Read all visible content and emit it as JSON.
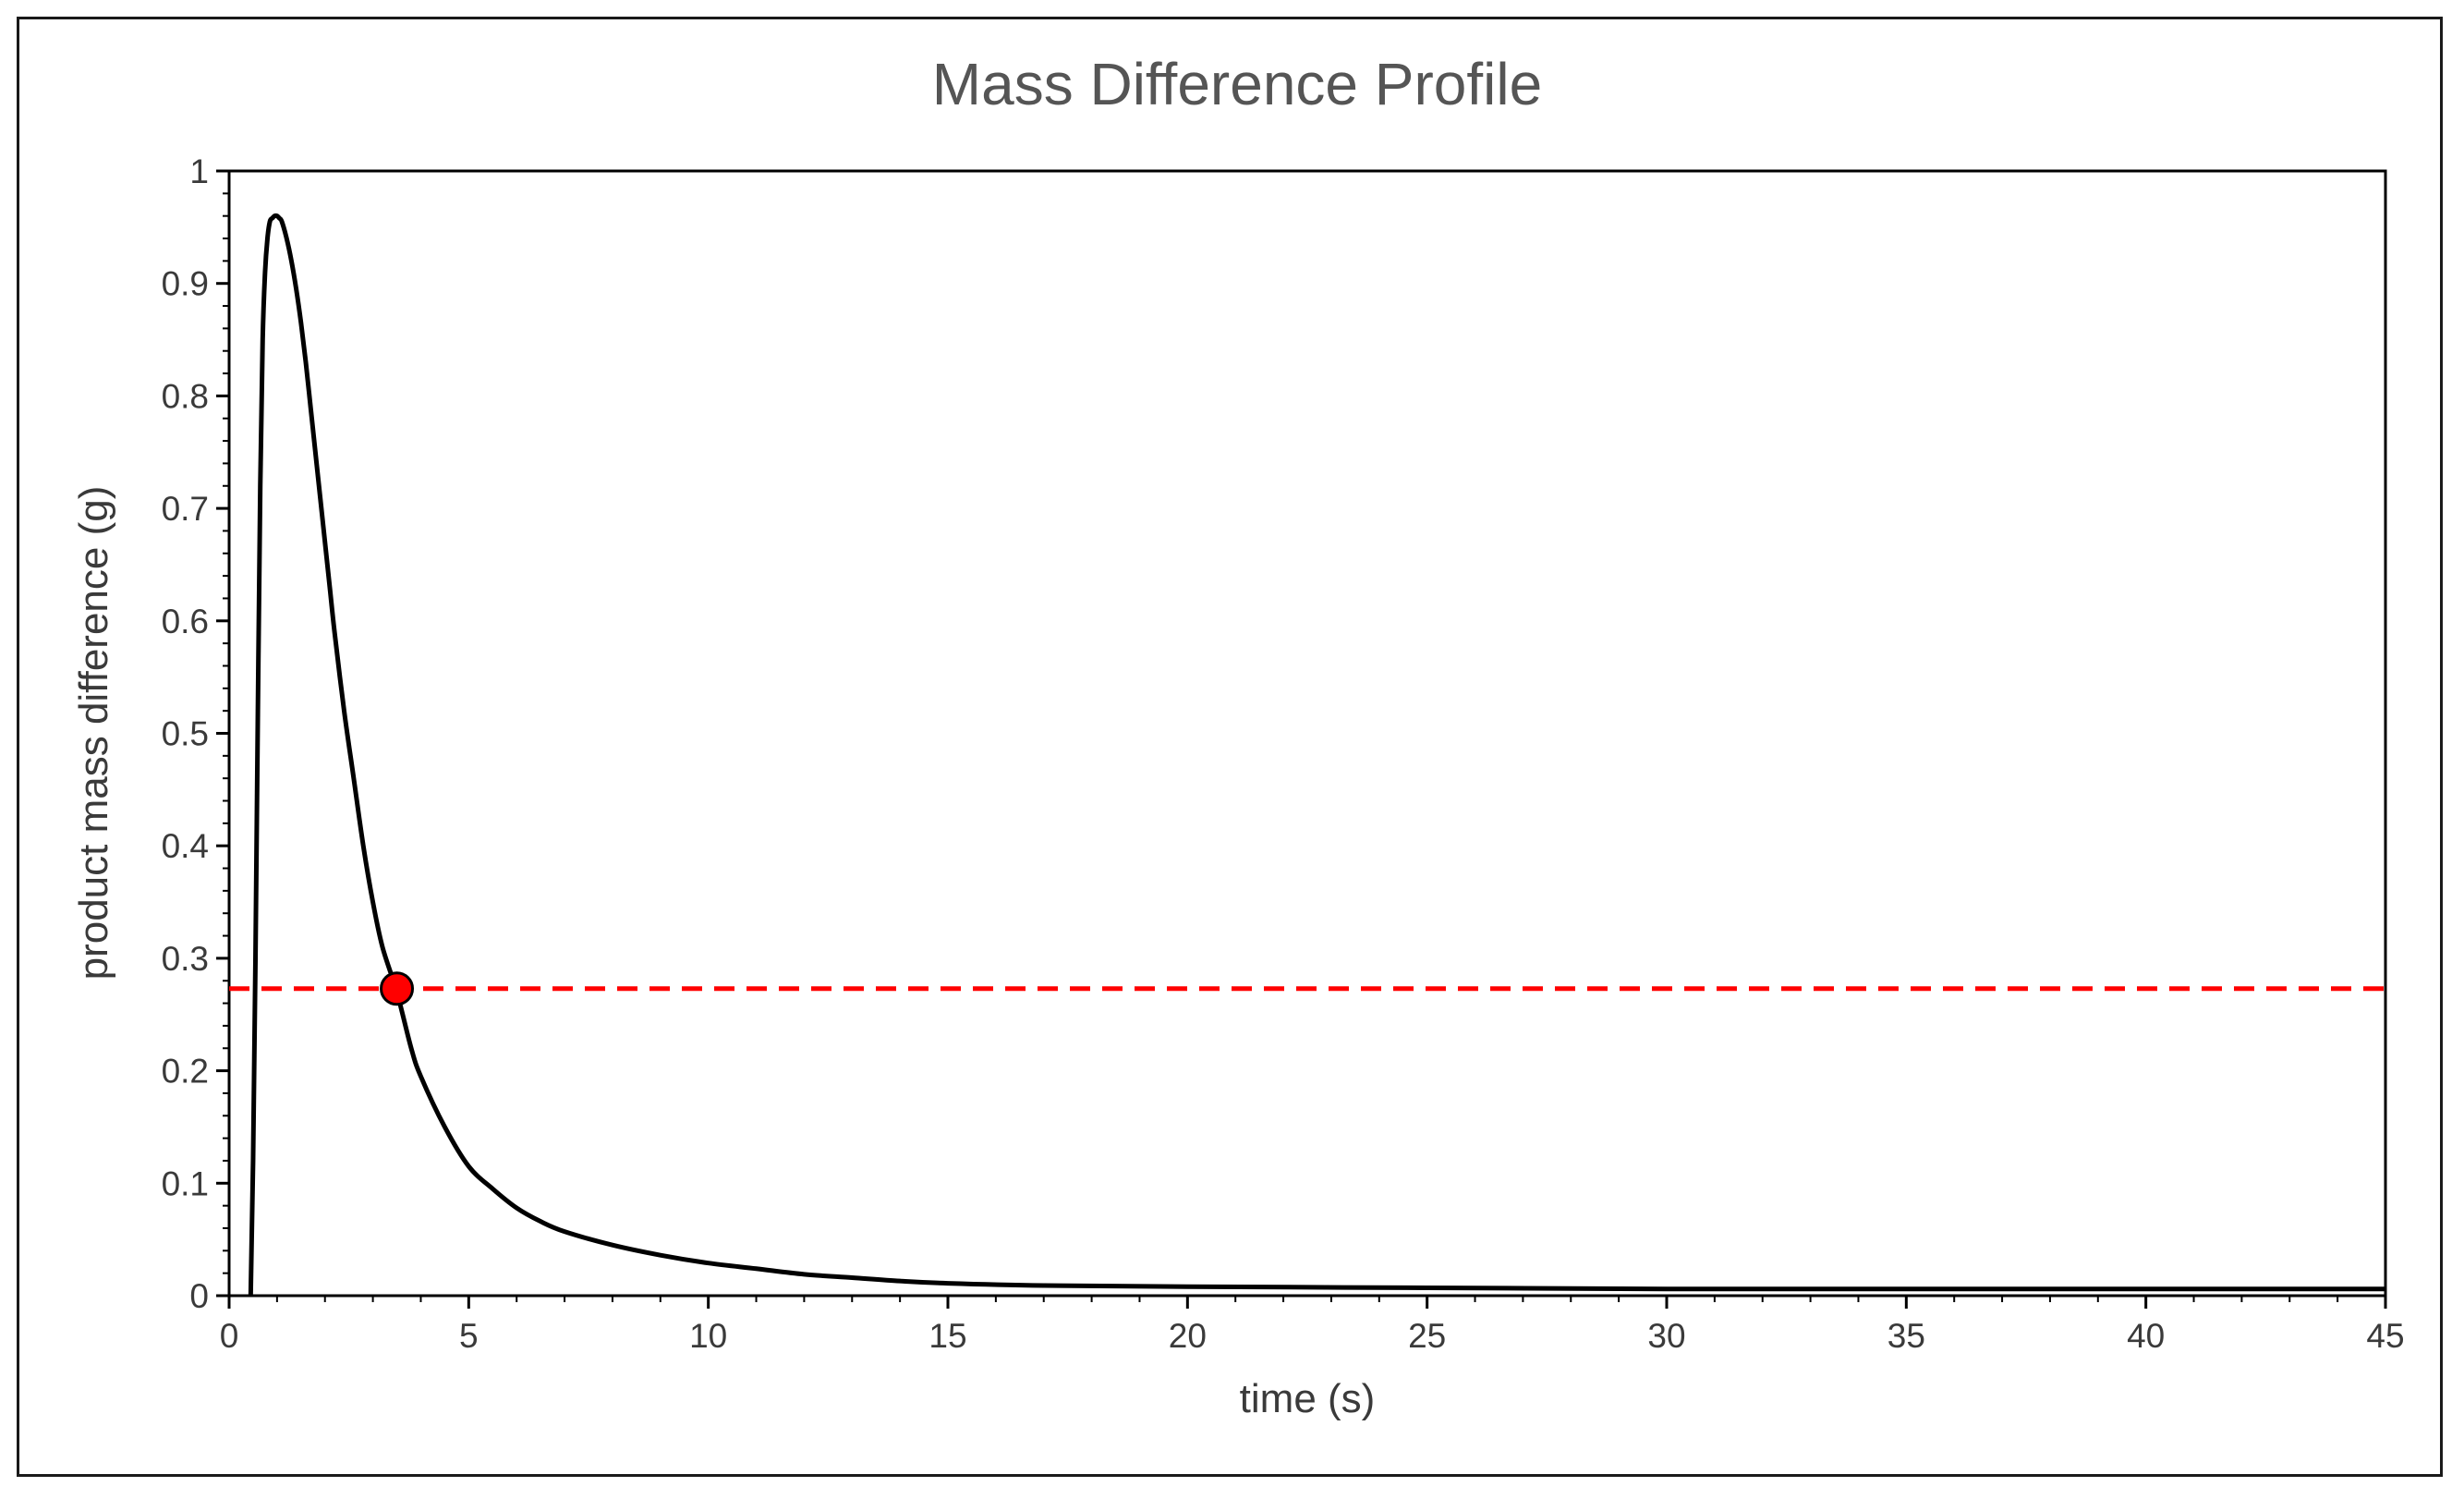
{
  "chart_data": {
    "type": "line",
    "title": "Mass Difference Profile",
    "xlabel": "time (s)",
    "ylabel": "product mass difference (g)",
    "xlim": [
      0,
      45
    ],
    "ylim": [
      0,
      1
    ],
    "xticks": [
      0,
      5,
      10,
      15,
      20,
      25,
      30,
      35,
      40,
      45
    ],
    "yticks": [
      0,
      0.1,
      0.2,
      0.3,
      0.4,
      0.5,
      0.6,
      0.7,
      0.8,
      0.9,
      1
    ],
    "ytick_labels": [
      "0",
      "0.1",
      "0.2",
      "0.3",
      "0.4",
      "0.5",
      "0.6",
      "0.7",
      "0.8",
      "0.9",
      "1"
    ],
    "grid": false,
    "series": [
      {
        "name": "product mass difference",
        "color": "#000000",
        "x": [
          0.45,
          0.5,
          0.55,
          0.6,
          0.65,
          0.7,
          0.75,
          0.8,
          0.85,
          0.9,
          0.95,
          1.0,
          1.05,
          1.1,
          1.2,
          1.3,
          1.4,
          1.5,
          1.6,
          1.7,
          1.8,
          1.9,
          2.0,
          2.1,
          2.2,
          2.4,
          2.6,
          2.8,
          3.0,
          3.2,
          3.5,
          3.8,
          4.0,
          4.5,
          5.0,
          5.5,
          6.0,
          6.5,
          7.0,
          8.0,
          9.0,
          10.0,
          11.0,
          12.0,
          13.0,
          14.0,
          15.0,
          17.0,
          20.0,
          25.0,
          30.0,
          35.0,
          40.0,
          45.0
        ],
        "y": [
          0.0,
          0.12,
          0.3,
          0.52,
          0.72,
          0.85,
          0.91,
          0.94,
          0.955,
          0.958,
          0.96,
          0.96,
          0.958,
          0.955,
          0.94,
          0.92,
          0.895,
          0.865,
          0.83,
          0.79,
          0.75,
          0.71,
          0.67,
          0.63,
          0.59,
          0.52,
          0.46,
          0.4,
          0.35,
          0.31,
          0.27,
          0.22,
          0.195,
          0.15,
          0.115,
          0.095,
          0.078,
          0.066,
          0.057,
          0.045,
          0.036,
          0.029,
          0.024,
          0.019,
          0.016,
          0.013,
          0.011,
          0.009,
          0.008,
          0.007,
          0.006,
          0.006,
          0.006,
          0.006
        ]
      }
    ],
    "reference_line": {
      "y": 0.273,
      "color": "#ff0000",
      "style": "dashed"
    },
    "marker_point": {
      "x": 3.5,
      "y": 0.273,
      "color": "#ff0000"
    }
  }
}
